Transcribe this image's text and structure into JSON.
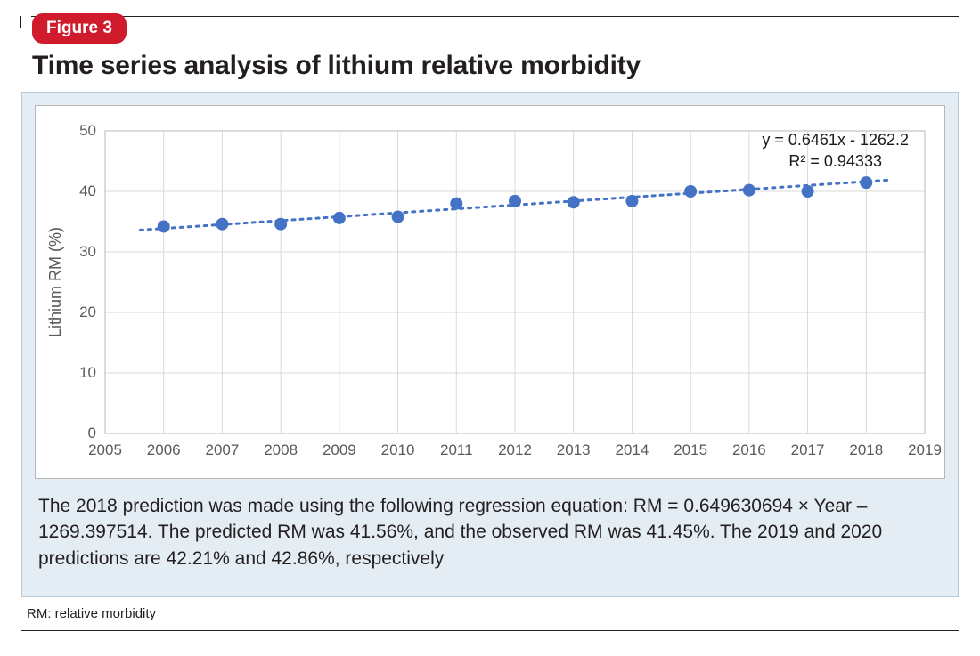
{
  "figure": {
    "badge_label": "Figure 3",
    "title": "Time series analysis of lithium relative morbidity",
    "abbrev": "RM: relative morbidity"
  },
  "caption": "The 2018 prediction was made using the following regression equation: RM = 0.649630694 × Year – 1269.397514. The predicted RM was 41.56%, and the observed RM was 41.45%. The 2019 and 2020 predictions are 42.21% and 42.86%, respectively",
  "chart": {
    "type": "scatter",
    "background_color": "#ffffff",
    "panel_bg_color": "#e4edf4",
    "plot_border_color": "#b7b7b7",
    "grid_color": "#d9d9d9",
    "axis_text_color": "#595959",
    "ylabel": "Lithium RM (%)",
    "ylabel_fontsize": 18,
    "tick_fontsize": 17,
    "x": {
      "min": 2005,
      "max": 2019,
      "ticks": [
        2005,
        2006,
        2007,
        2008,
        2009,
        2010,
        2011,
        2012,
        2013,
        2014,
        2015,
        2016,
        2017,
        2018,
        2019
      ]
    },
    "y": {
      "min": 0,
      "max": 50,
      "ticks": [
        0,
        10,
        20,
        30,
        40,
        50
      ]
    },
    "series": {
      "x": [
        2006,
        2007,
        2008,
        2009,
        2010,
        2011,
        2012,
        2013,
        2014,
        2015,
        2016,
        2017,
        2018
      ],
      "y": [
        34.2,
        34.6,
        34.6,
        35.6,
        35.8,
        38.0,
        38.4,
        38.2,
        38.4,
        40.0,
        40.2,
        40.0,
        41.45
      ],
      "marker_color": "#4472c4",
      "marker_radius": 7,
      "marker_style": "circle"
    },
    "trendline": {
      "slope": 0.6461,
      "intercept": -1262.2,
      "color": "#4472c4",
      "dash": "3,6",
      "width": 3,
      "x_start": 2005.6,
      "x_end": 2018.4,
      "equation_text": "y = 0.6461x - 1262.2",
      "r2_text": "R² = 0.94333",
      "equation_fontsize": 18
    }
  }
}
